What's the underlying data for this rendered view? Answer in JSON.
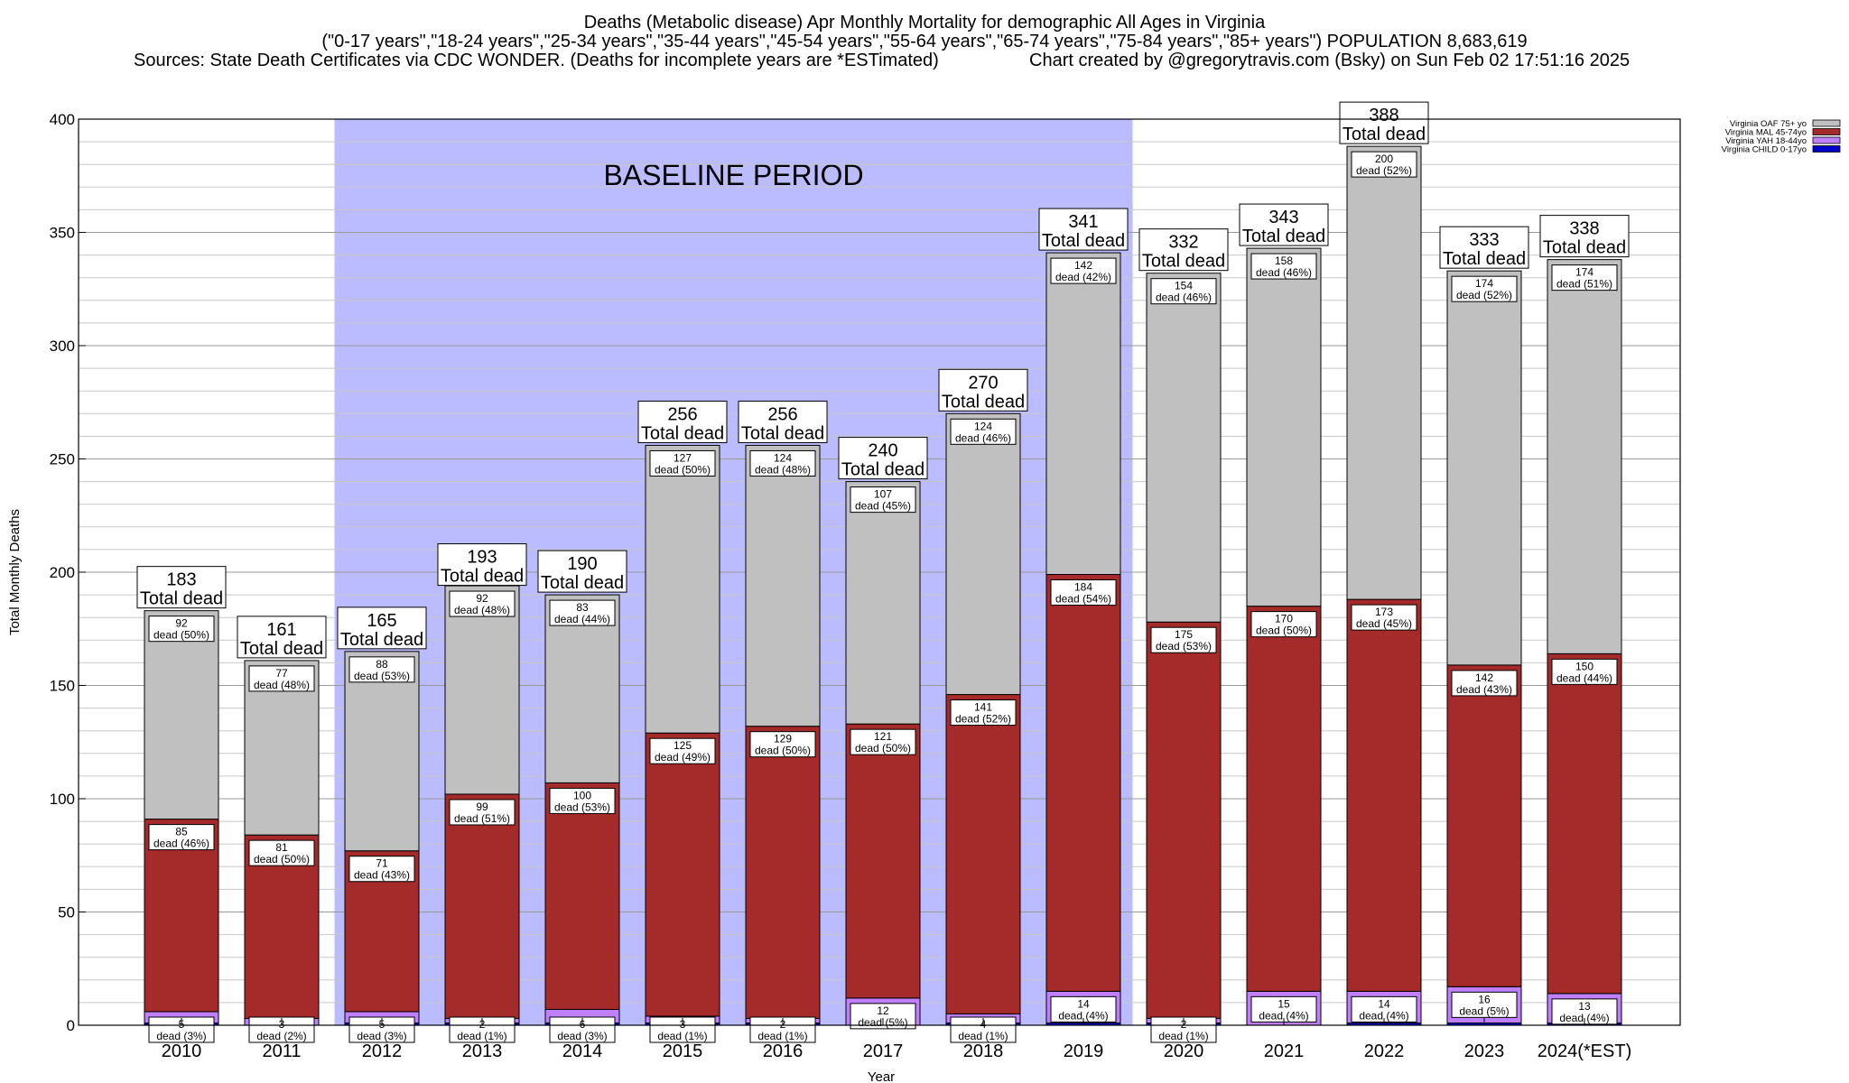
{
  "header": {
    "title": "Deaths (Metabolic disease) Apr Monthly Mortality for demographic All Ages in Virginia",
    "subtitle": "(\"0-17 years\",\"18-24 years\",\"25-34 years\",\"35-44 years\",\"45-54 years\",\"55-64 years\",\"65-74 years\",\"75-84 years\",\"85+ years\") POPULATION 8,683,619",
    "sources": "Sources: State Death Certificates via CDC WONDER. (Deaths for incomplete years are *ESTimated)",
    "credit": "Chart created by @gregorytravis.com (Bsky) on Sun Feb 02 17:51:16 2025"
  },
  "chart_data": {
    "type": "bar",
    "stacked": true,
    "categories": [
      "2010",
      "2011",
      "2012",
      "2013",
      "2014",
      "2015",
      "2016",
      "2017",
      "2018",
      "2019",
      "2020",
      "2021",
      "2022",
      "2023",
      "2024(*EST)"
    ],
    "series": [
      {
        "name": "Virginia CHILD 0-17yo",
        "color": "#0000cc",
        "values": [
          1,
          0,
          1,
          1,
          1,
          1,
          1,
          0,
          1,
          1,
          1,
          0,
          1,
          1,
          1
        ],
        "labels": [
          "",
          "",
          "",
          "",
          "",
          "",
          "",
          "",
          "",
          "",
          "",
          "",
          "",
          "",
          ""
        ]
      },
      {
        "name": "Virginia YAH 18-44yo",
        "color": "#bf7fff",
        "values": [
          5,
          3,
          5,
          2,
          6,
          3,
          2,
          12,
          4,
          14,
          2,
          15,
          14,
          16,
          13
        ],
        "labels": [
          "5\ndead (3%)",
          "3\ndead (2%)",
          "5\ndead (3%)",
          "2\ndead (1%)",
          "6\ndead (3%)",
          "3\ndead (1%)",
          "2\ndead (1%)",
          "12\ndead (5%)",
          "4\ndead (1%)",
          "14\ndead (4%)",
          "2\ndead (1%)",
          "15\ndead (4%)",
          "14\ndead (4%)",
          "16\ndead (5%)",
          "13\ndead (4%)"
        ]
      },
      {
        "name": "Virginia MAL 45-74yo",
        "color": "#a52a2a",
        "values": [
          85,
          81,
          71,
          99,
          100,
          125,
          129,
          121,
          141,
          184,
          175,
          170,
          173,
          142,
          150
        ],
        "labels": [
          "85\ndead (46%)",
          "81\ndead (50%)",
          "71\ndead (43%)",
          "99\ndead (51%)",
          "100\ndead (53%)",
          "125\ndead (49%)",
          "129\ndead (50%)",
          "121\ndead (50%)",
          "141\ndead (52%)",
          "184\ndead (54%)",
          "175\ndead (53%)",
          "170\ndead (50%)",
          "173\ndead (45%)",
          "142\ndead (43%)",
          "150\ndead (44%)"
        ]
      },
      {
        "name": "Virginia OAF 75+ yo",
        "color": "#c0c0c0",
        "values": [
          92,
          77,
          88,
          92,
          83,
          127,
          124,
          107,
          124,
          142,
          154,
          158,
          200,
          174,
          174
        ],
        "labels": [
          "92\ndead (50%)",
          "77\ndead (48%)",
          "88\ndead (53%)",
          "92\ndead (48%)",
          "83\ndead (44%)",
          "127\ndead (50%)",
          "124\ndead (48%)",
          "107\ndead (45%)",
          "124\ndead (46%)",
          "142\ndead (42%)",
          "154\ndead (46%)",
          "158\ndead (46%)",
          "200\ndead (52%)",
          "174\ndead (52%)",
          "174\ndead (51%)"
        ]
      }
    ],
    "totals": [
      183,
      161,
      165,
      193,
      190,
      256,
      256,
      240,
      270,
      341,
      332,
      343,
      388,
      333,
      338
    ],
    "total_label": "Total dead",
    "ylim": [
      0,
      400
    ],
    "yticks": [
      0,
      50,
      100,
      150,
      200,
      250,
      300,
      350,
      400
    ],
    "minor_step": 10,
    "xlabel": "Year",
    "ylabel": "Total Monthly Deaths",
    "baseline": {
      "label": "BASELINE PERIOD",
      "from": "2012",
      "to": "2019",
      "color": "#bbbbff"
    },
    "legend": {
      "placement": "top-right",
      "entries": [
        {
          "name": "Virginia OAF 75+ yo",
          "color": "#c0c0c0"
        },
        {
          "name": "Virginia MAL 45-74yo",
          "color": "#a52a2a"
        },
        {
          "name": "Virginia YAH 18-44yo",
          "color": "#bf7fff"
        },
        {
          "name": "Virginia CHILD 0-17yo",
          "color": "#0000cc"
        }
      ]
    }
  }
}
